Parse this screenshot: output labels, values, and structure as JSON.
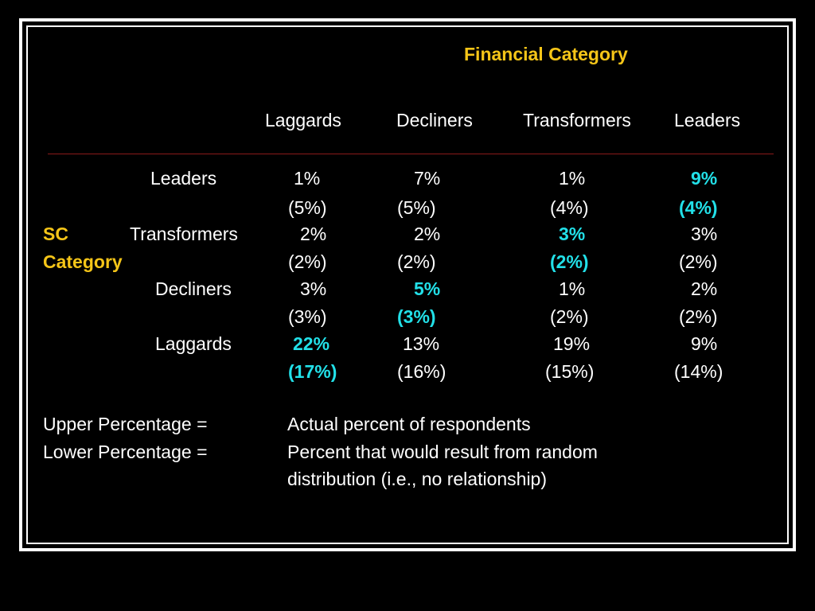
{
  "title": "Financial Category",
  "columns": [
    "Laggards",
    "Decliners",
    "Transformers",
    "Leaders"
  ],
  "row_axis": {
    "line1": "SC",
    "line2": "Category"
  },
  "rows": [
    {
      "label": "Leaders",
      "upper": [
        "1%",
        "7%",
        "1%",
        "9%"
      ],
      "lower": [
        "(5%)",
        "(5%)",
        "(4%)",
        "(4%)"
      ]
    },
    {
      "label": "Transformers",
      "upper": [
        "2%",
        "2%",
        "3%",
        "3%"
      ],
      "lower": [
        "(2%)",
        "(2%)",
        "(2%)",
        "(2%)"
      ]
    },
    {
      "label": "Decliners",
      "upper": [
        "3%",
        "5%",
        "1%",
        "2%"
      ],
      "lower": [
        "(3%)",
        "(3%)",
        "(2%)",
        "(2%)"
      ]
    },
    {
      "label": "Laggards",
      "upper": [
        "22%",
        "13%",
        "19%",
        "9%"
      ],
      "lower": [
        "(17%)",
        "(16%)",
        "(15%)",
        "(14%)"
      ]
    }
  ],
  "legend": {
    "upper_label": "Upper Percentage =",
    "upper_text": "Actual percent of respondents",
    "lower_label": "Lower Percentage =",
    "lower_text_1": "Percent that would result from random",
    "lower_text_2": "distribution (i.e., no relationship)"
  },
  "colors": {
    "heading": "#f5c518",
    "highlight": "#22e0e8",
    "rule": "#8b1a1a"
  }
}
